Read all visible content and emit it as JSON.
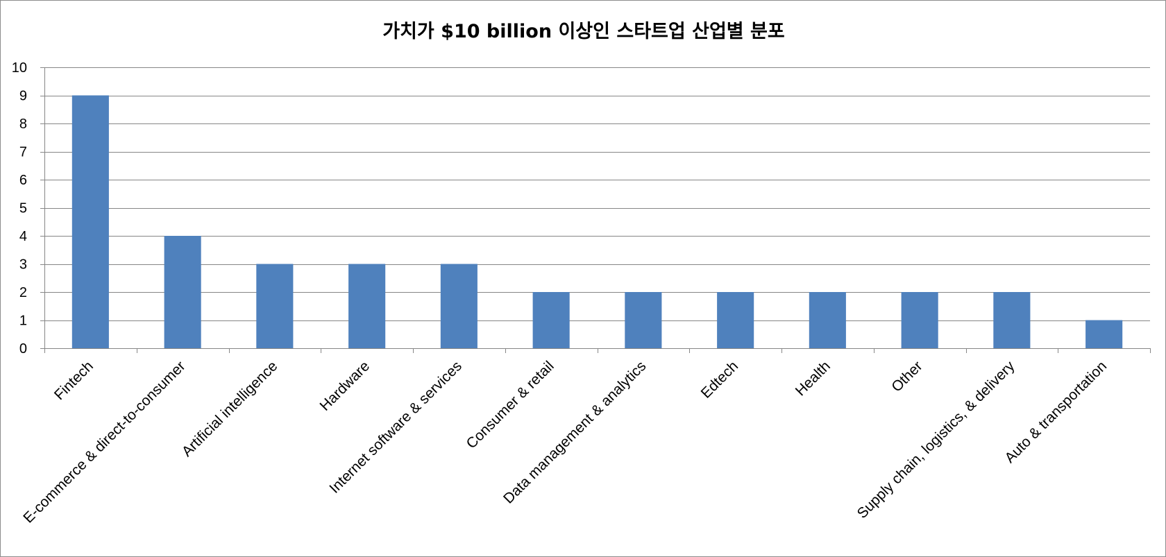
{
  "chart_data": {
    "type": "bar",
    "title": "가치가 $10 billion 이상인 스타트업 산업별 분포",
    "xlabel": "",
    "ylabel": "",
    "ylim": [
      0,
      10
    ],
    "yticks": [
      0,
      1,
      2,
      3,
      4,
      5,
      6,
      7,
      8,
      9,
      10
    ],
    "grid": true,
    "legend": "none",
    "bar_color": "#4f81bd",
    "grid_color": "#868686",
    "categories": [
      "Fintech",
      "E-commerce & direct-to-consumer",
      "Artificial intelligence",
      "Hardware",
      "Internet software & services",
      "Consumer & retail",
      "Data management & analytics",
      "Edtech",
      "Health",
      "Other",
      "Supply chain, logistics, & delivery",
      "Auto & transportation"
    ],
    "values": [
      9,
      4,
      3,
      3,
      3,
      2,
      2,
      2,
      2,
      2,
      2,
      1
    ]
  }
}
